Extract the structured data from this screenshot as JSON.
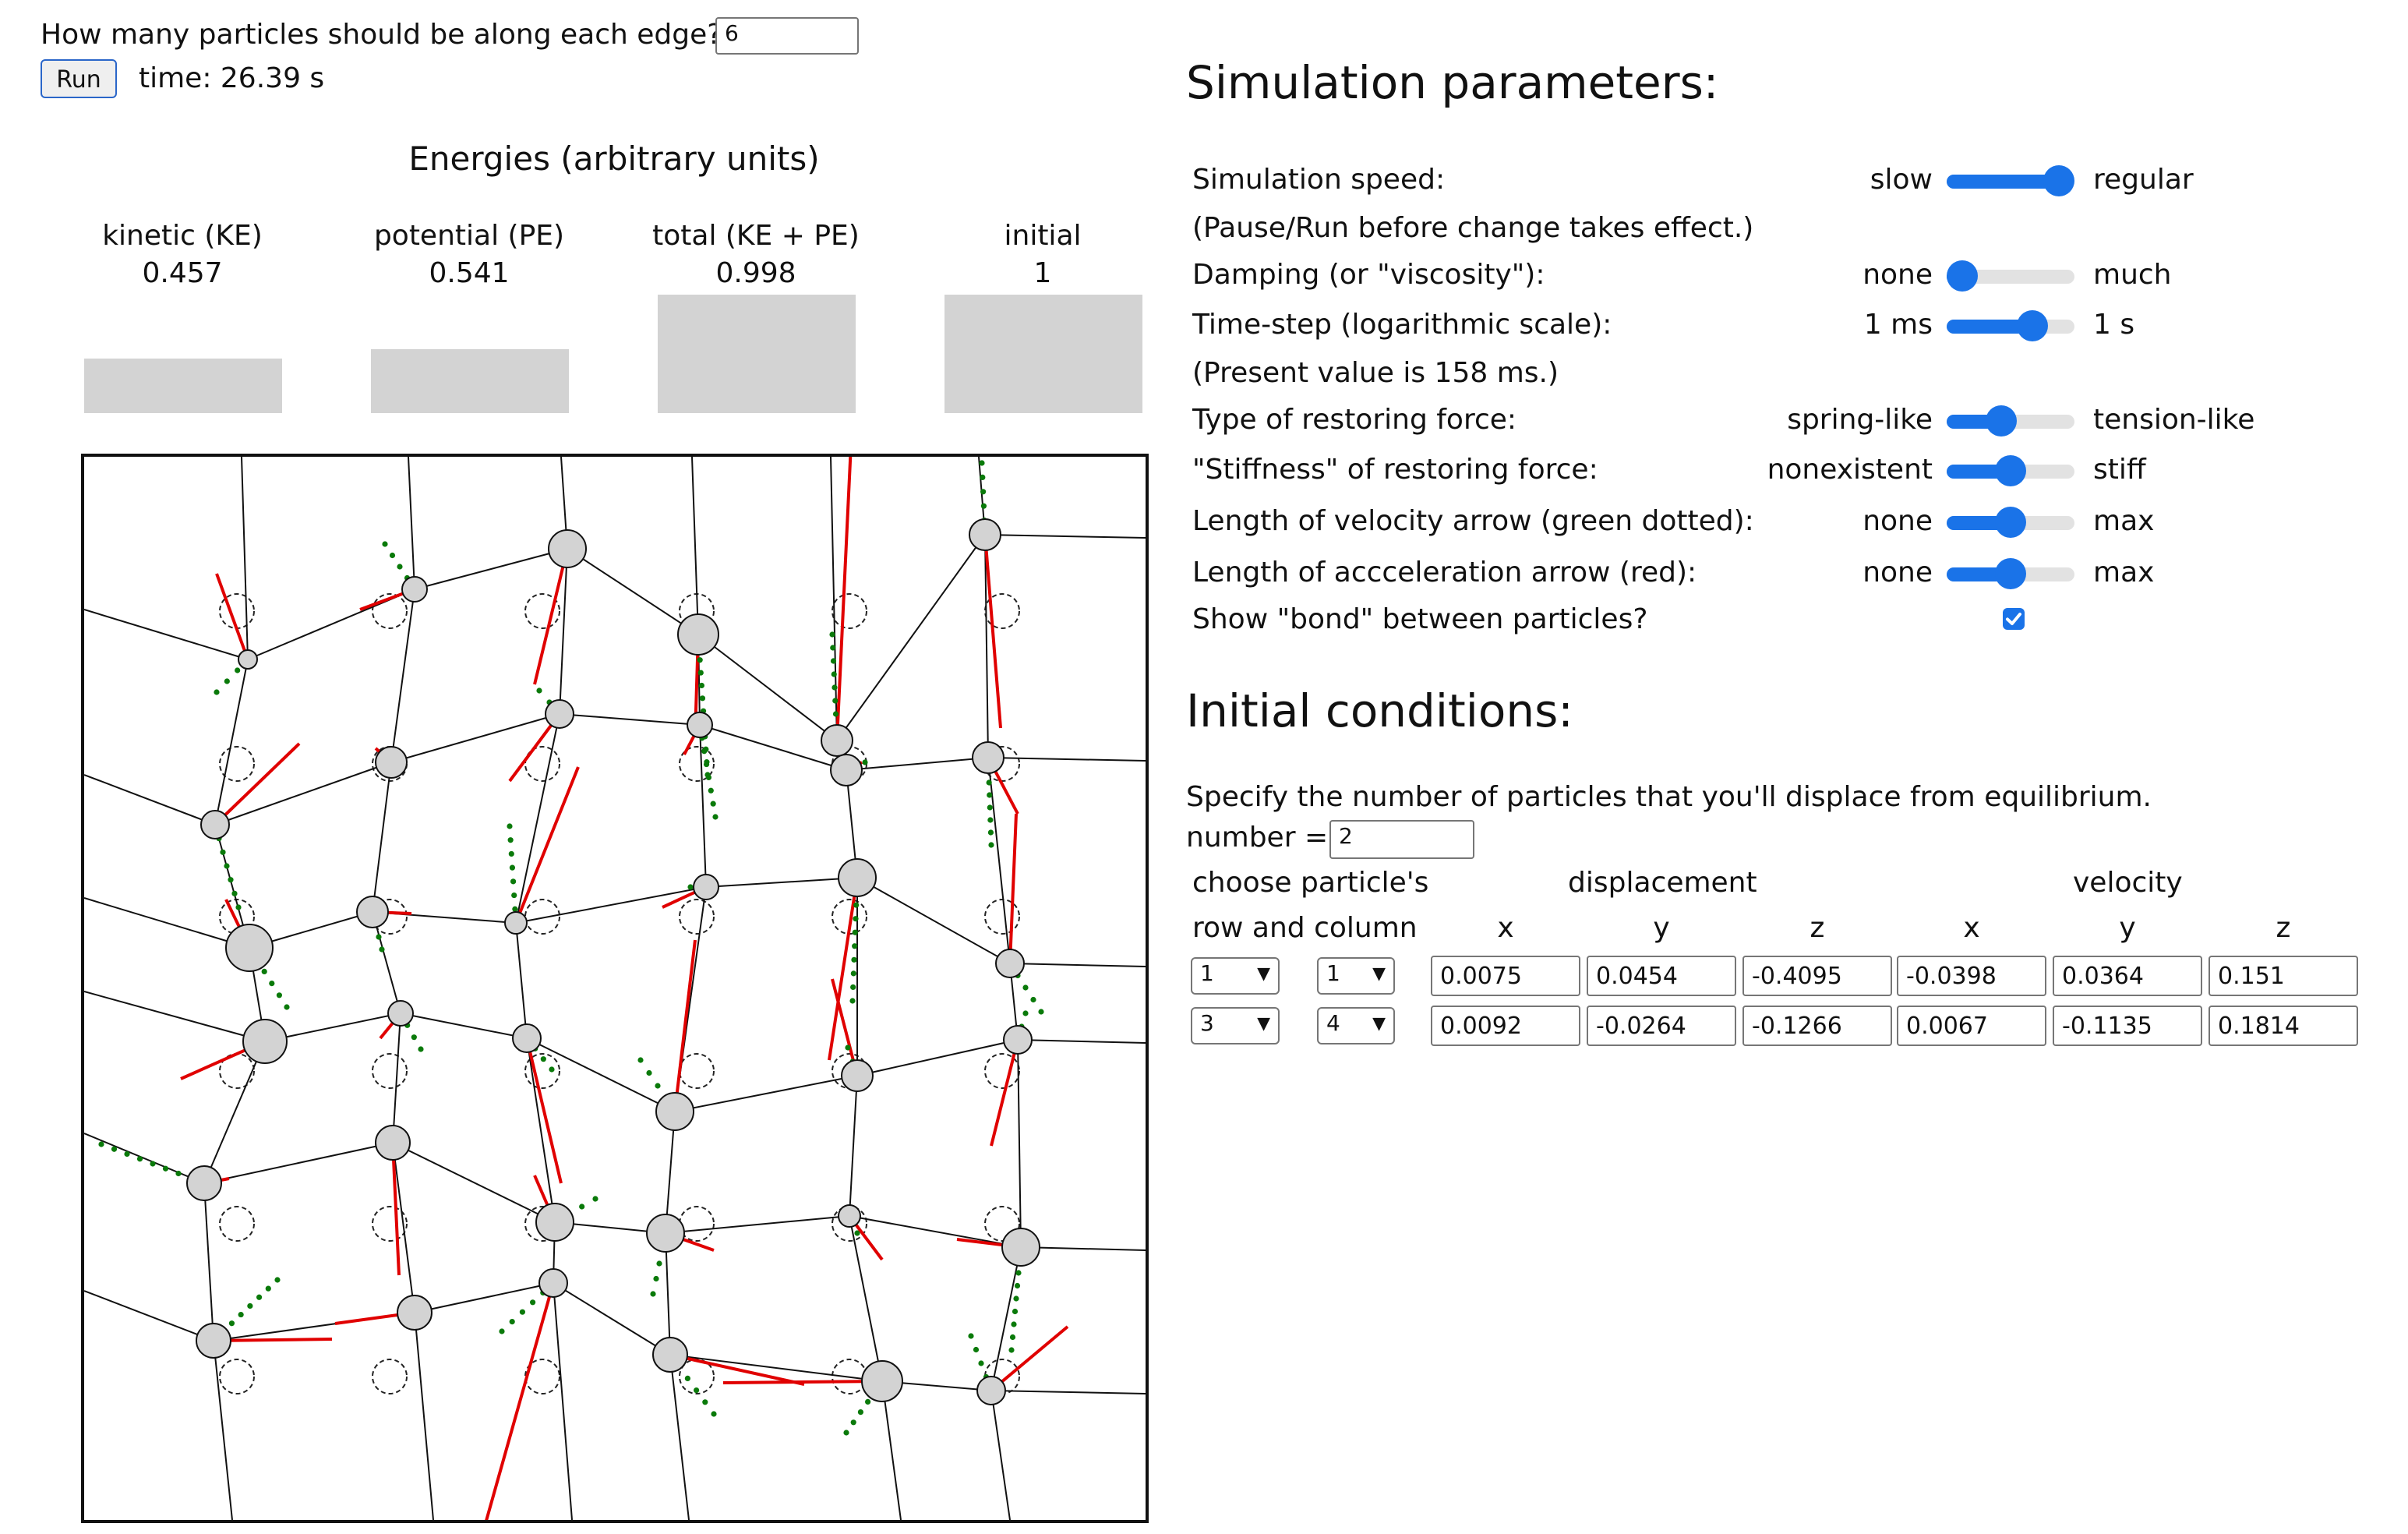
{
  "top": {
    "edge_question": "How many particles should be along each edge?",
    "edge_value": "6",
    "run_label": "Run",
    "time_text": "time: 26.39 s"
  },
  "energies": {
    "title": "Energies (arbitrary units)",
    "columns": [
      {
        "label": "kinetic (KE)",
        "value": "0.457",
        "level": 0.457
      },
      {
        "label": "potential (PE)",
        "value": "0.541",
        "level": 0.541
      },
      {
        "label": "total (KE + PE)",
        "value": "0.998",
        "level": 0.998
      },
      {
        "label": "initial",
        "value": "1",
        "level": 1.0
      }
    ]
  },
  "params": {
    "title": "Simulation parameters:",
    "rows": [
      {
        "label": "Simulation speed:",
        "left": "slow",
        "right": "regular",
        "level": 1.0
      },
      {
        "label": "(Pause/Run before change takes effect.)"
      },
      {
        "label": "Damping (or \"viscosity\"):",
        "left": "none",
        "right": "much",
        "level": 0.0
      },
      {
        "label": "Time-step (logarithmic scale):",
        "left": "1 ms",
        "right": "1 s",
        "level": 0.73
      },
      {
        "label": "(Present value is 158 ms.)"
      },
      {
        "label": "Type of restoring force:",
        "left": "spring-like",
        "right": "tension-like",
        "level": 0.4
      },
      {
        "label": "\"Stiffness\" of restoring force:",
        "left": "nonexistent",
        "right": "stiff",
        "level": 0.5
      },
      {
        "label": "Length of velocity arrow (green dotted):",
        "left": "none",
        "right": "max",
        "level": 0.5
      },
      {
        "label": "Length of accceleration arrow (red):",
        "left": "none",
        "right": "max",
        "level": 0.5
      },
      {
        "label": "Show \"bond\" between particles?",
        "checked": true
      }
    ]
  },
  "initial": {
    "title": "Initial conditions:",
    "instruction": "Specify the number of particles that you'll displace from equilibrium.",
    "number_label": "number =",
    "number_value": "2",
    "choose_label": "choose particle's",
    "rowcol_label": "row and column",
    "displacement_label": "displacement",
    "velocity_label": "velocity",
    "axes": [
      "x",
      "y",
      "z",
      "x",
      "y",
      "z"
    ],
    "rows": [
      {
        "row": "1",
        "col": "1",
        "values": [
          "0.0075",
          "0.0454",
          "-0.4095",
          "-0.0398",
          "0.0364",
          "0.151"
        ]
      },
      {
        "row": "3",
        "col": "4",
        "values": [
          "0.0092",
          "-0.0264",
          "-0.1266",
          "0.0067",
          "-0.1135",
          "0.1814"
        ]
      }
    ]
  }
}
